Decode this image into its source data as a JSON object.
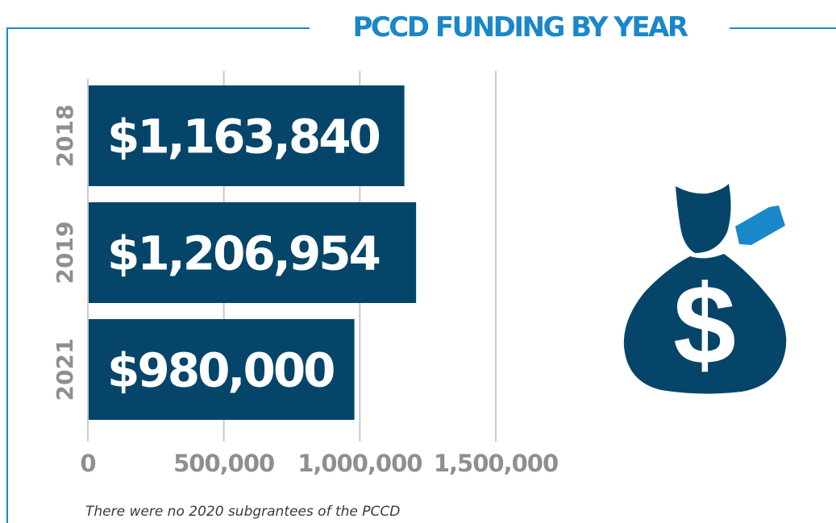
{
  "chart_data": {
    "type": "bar",
    "orientation": "horizontal",
    "title": "PCCD FUNDING BY YEAR",
    "categories": [
      "2018",
      "2019",
      "2021"
    ],
    "values": [
      1163840,
      1206954,
      980000
    ],
    "value_labels": [
      "$1,163,840",
      "$1,206,954",
      "$980,000"
    ],
    "x_ticks": [
      0,
      500000,
      1000000,
      1500000
    ],
    "x_tick_labels": [
      "0",
      "500,000",
      "1,000,000",
      "1,500,000"
    ],
    "xlim": [
      0,
      1500000
    ],
    "grid": true,
    "legend": "none",
    "footnote": "There were no 2020 subgrantees of the PCCD"
  },
  "colors": {
    "bar": "#06456a",
    "accent": "#1a87c9",
    "axis_text": "#8f8f8f",
    "grid": "#c9c9c9",
    "bar_label": "#ffffff"
  },
  "icons": {
    "money_bag": "money-bag-icon"
  }
}
